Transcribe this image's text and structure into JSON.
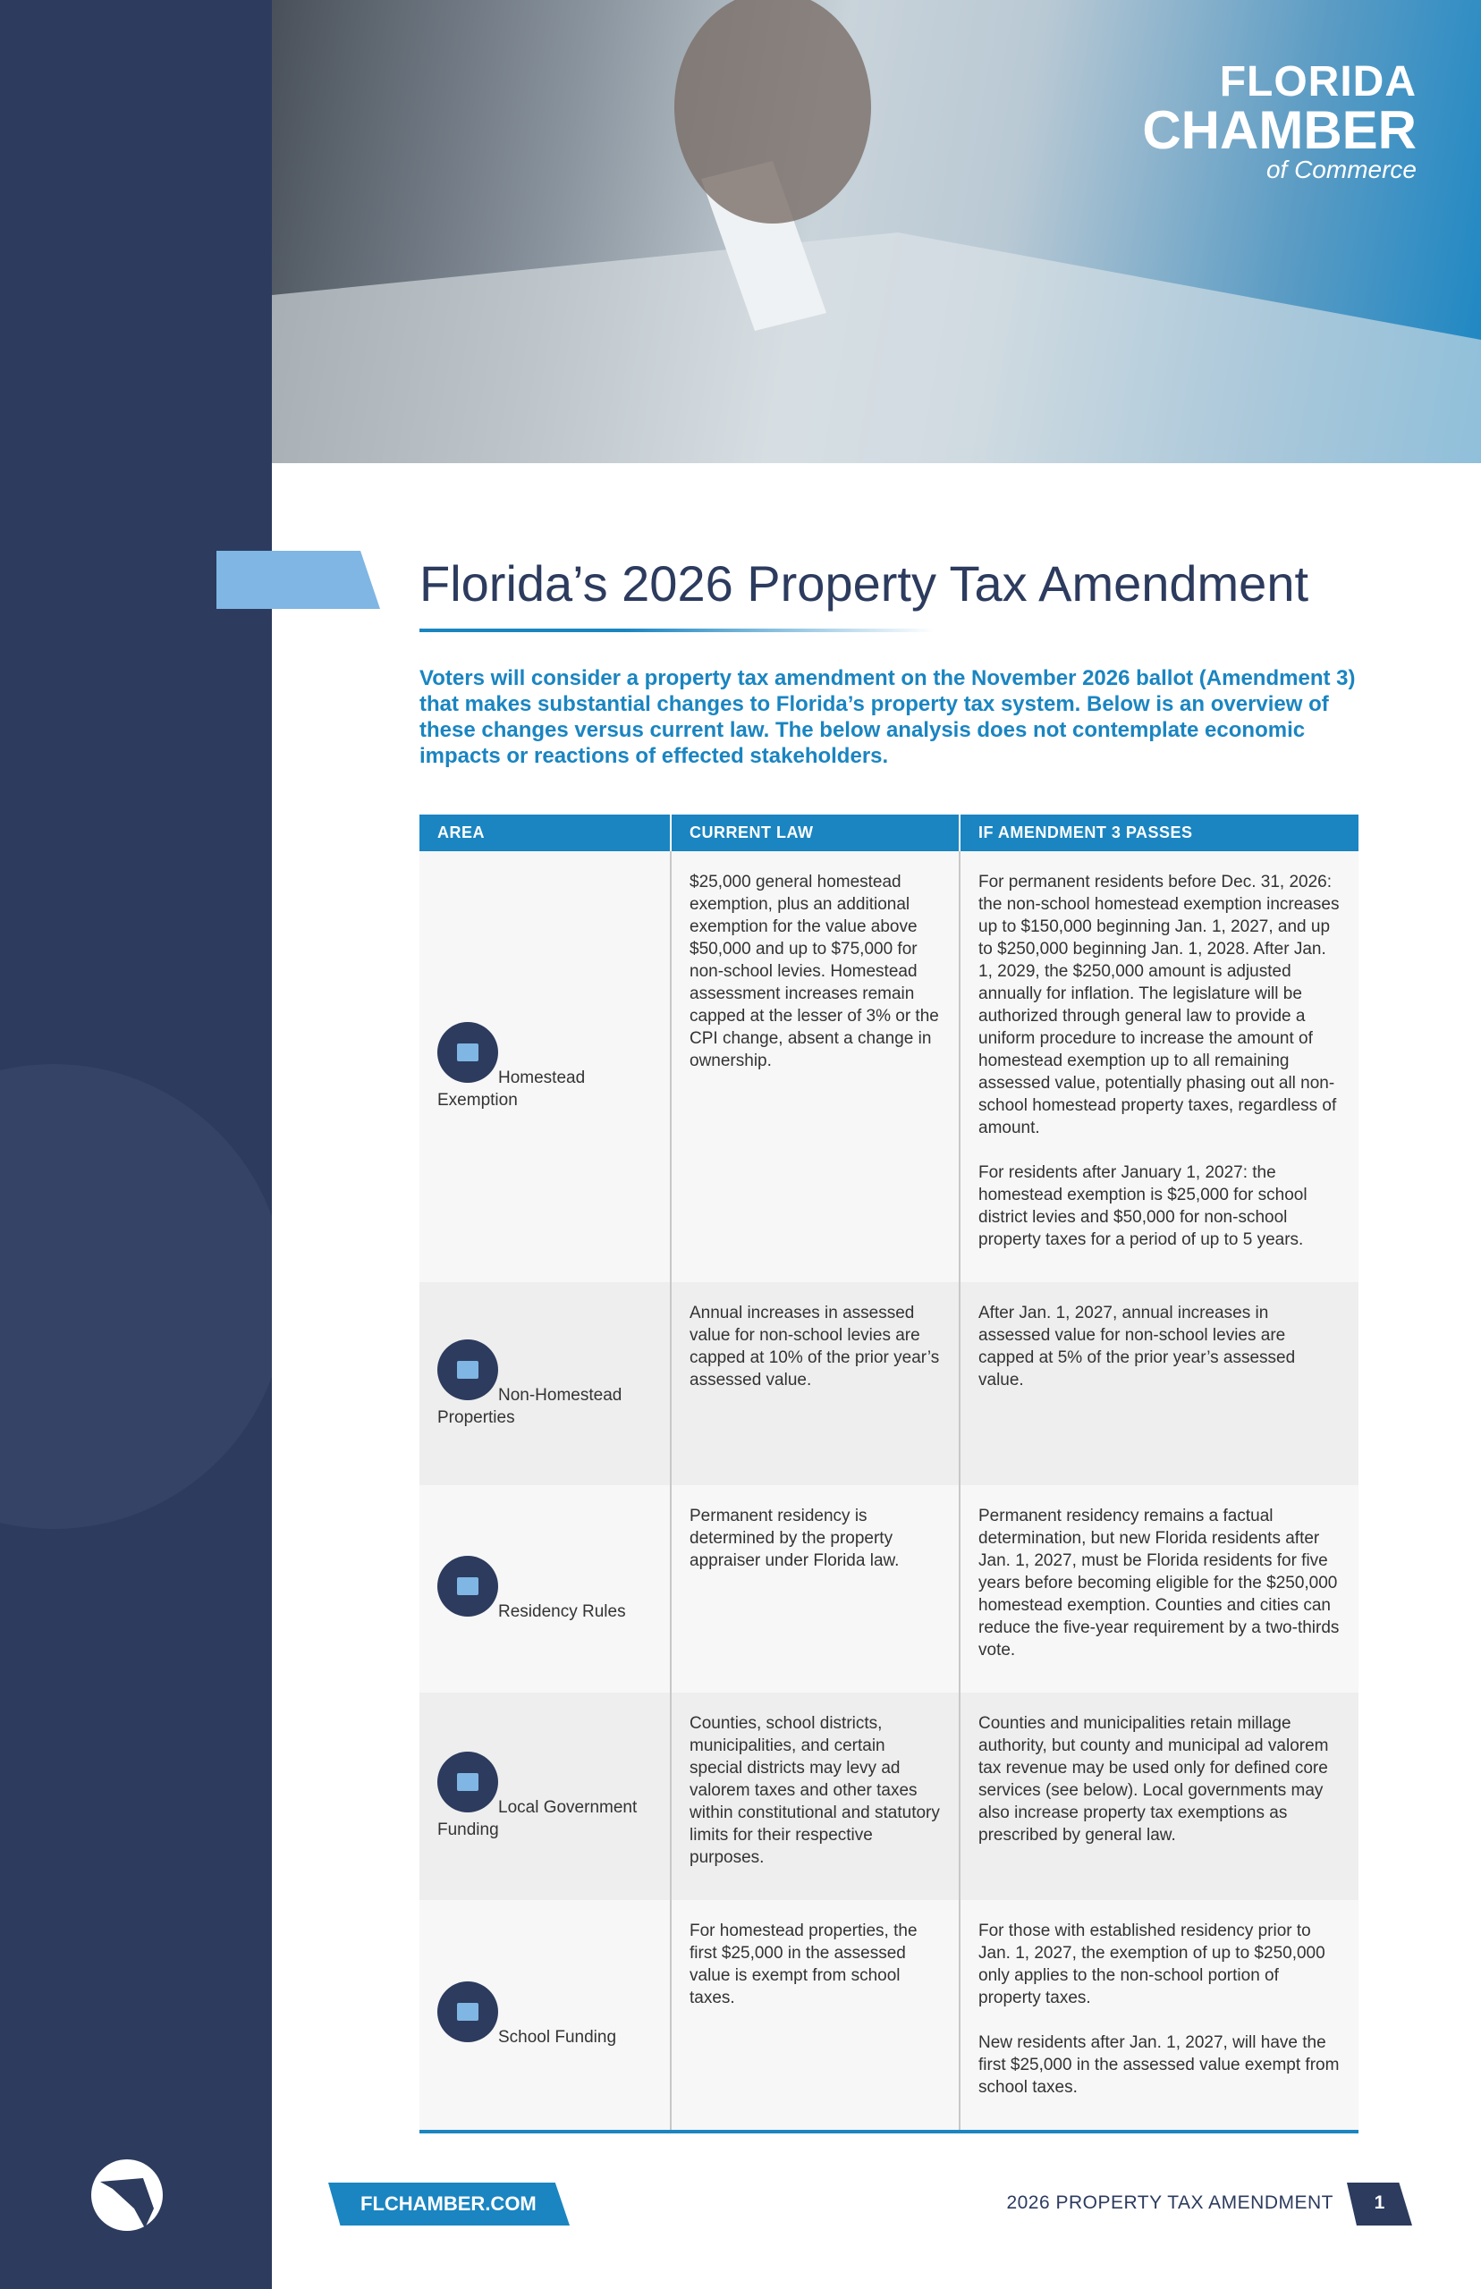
{
  "header": {
    "logo": {
      "line1": "FLORIDA",
      "line2": "CHAMBER",
      "line3": "of Commerce"
    }
  },
  "title": "Florida’s 2026 Property Tax Amendment",
  "intro": "Voters will consider a property tax amendment on the November 2026 ballot (Amendment 3) that makes substantial changes to Florida’s property tax system. Below is an overview of these changes versus current law. The below analysis does not contemplate economic impacts or reactions of effected stakeholders.",
  "table": {
    "columns": [
      "AREA",
      "CURRENT LAW",
      "IF AMENDMENT 3 PASSES"
    ],
    "rows": [
      {
        "area": "Homestead Exemption",
        "current": "$25,000 general homestead exemption, plus an additional exemption for the value above $50,000 and up to $75,000 for non-school levies. Homestead assessment increases remain capped at the lesser of 3% or the CPI change, absent a change in ownership.",
        "amendment": [
          "For permanent residents before Dec. 31, 2026: the non-school homestead exemption increases up to $150,000 beginning Jan. 1, 2027, and up to $250,000 beginning Jan. 1, 2028. After Jan. 1, 2029, the $250,000 amount is adjusted annually for inflation. The legislature will be authorized through general law to provide a uniform procedure to increase the amount of homestead exemption up to all remaining assessed value, potentially phasing out all non-school homestead property taxes, regardless of amount.",
          "For residents after January 1, 2027: the homestead exemption is $25,000 for school district levies and $50,000 for non-school property taxes for a period of up to 5 years."
        ]
      },
      {
        "area": "Non-Homestead Properties",
        "current": "Annual increases in assessed value for non-school levies are capped at 10% of the prior year’s assessed value.",
        "amendment": [
          "After Jan. 1, 2027, annual increases in assessed value for non-school levies are capped at 5% of the prior year’s assessed value."
        ]
      },
      {
        "area": "Residency Rules",
        "current": "Permanent residency is determined by the property appraiser under Florida law.",
        "amendment": [
          "Permanent residency remains a factual determination, but new Florida residents after Jan. 1, 2027, must be Florida residents for five years before becoming eligible for the $250,000 homestead exemption. Counties and cities can reduce the five-year requirement by a two-thirds vote."
        ]
      },
      {
        "area": "Local Government Funding",
        "current": "Counties, school districts, municipalities, and certain special districts may levy ad valorem taxes and other taxes within constitutional and statutory limits for their respective purposes.",
        "amendment": [
          "Counties and municipalities retain millage authority, but county and municipal ad valorem tax revenue may be used only for defined core services (see below). Local governments may also increase property tax exemptions as prescribed by general law."
        ]
      },
      {
        "area": "School Funding",
        "current": "For homestead properties, the first $25,000 in the assessed value is exempt from school taxes.",
        "amendment": [
          "For those with established residency prior to Jan. 1, 2027, the exemption of up to $250,000 only applies to the non-school portion of property taxes.",
          "New residents after Jan. 1, 2027, will have the first $25,000 in the assessed value exempt from school taxes."
        ]
      }
    ]
  },
  "footer": {
    "website": "FLCHAMBER.COM",
    "label": "2026 PROPERTY TAX AMENDMENT",
    "page": "1"
  }
}
